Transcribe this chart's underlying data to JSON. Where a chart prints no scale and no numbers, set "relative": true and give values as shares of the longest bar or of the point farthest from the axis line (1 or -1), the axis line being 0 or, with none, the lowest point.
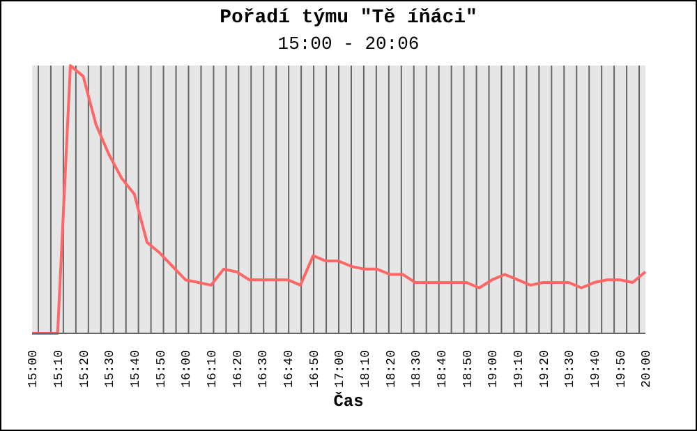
{
  "chart_data": {
    "type": "line",
    "title": "Pořadí týmu \"Tě íňáci\"",
    "subtitle": "15:00 - 20:06",
    "xlabel": "Čas",
    "relative": true,
    "grid": "x",
    "marker": "none",
    "line_style": "solid",
    "categories": [
      "15:00",
      null,
      "15:10",
      null,
      "15:20",
      null,
      "15:30",
      null,
      "15:40",
      null,
      "15:50",
      null,
      "16:00",
      null,
      "16:10",
      null,
      "16:20",
      null,
      "16:30",
      null,
      "16:40",
      null,
      "16:50",
      null,
      "17:00",
      null,
      "18:10",
      null,
      "18:20",
      null,
      "18:30",
      null,
      "18:40",
      null,
      "18:50",
      null,
      "19:00",
      null,
      "19:10",
      null,
      "19:20",
      null,
      "19:30",
      null,
      "19:40",
      null,
      "19:50",
      null,
      "20:00"
    ],
    "series": [
      {
        "color": "#ff6666",
        "values": [
          0,
          0,
          0,
          1,
          0.96,
          0.78,
          0.67,
          0.58,
          0.52,
          0.34,
          0.3,
          0.25,
          0.2,
          0.19,
          0.18,
          0.24,
          0.23,
          0.2,
          0.2,
          0.2,
          0.2,
          0.18,
          0.29,
          0.27,
          0.27,
          0.25,
          0.24,
          0.24,
          0.22,
          0.22,
          0.19,
          0.19,
          0.19,
          0.19,
          0.19,
          0.17,
          0.2,
          0.22,
          0.2,
          0.18,
          0.19,
          0.19,
          0.19,
          0.17,
          0.19,
          0.2,
          0.2,
          0.19,
          0.23
        ]
      }
    ]
  }
}
